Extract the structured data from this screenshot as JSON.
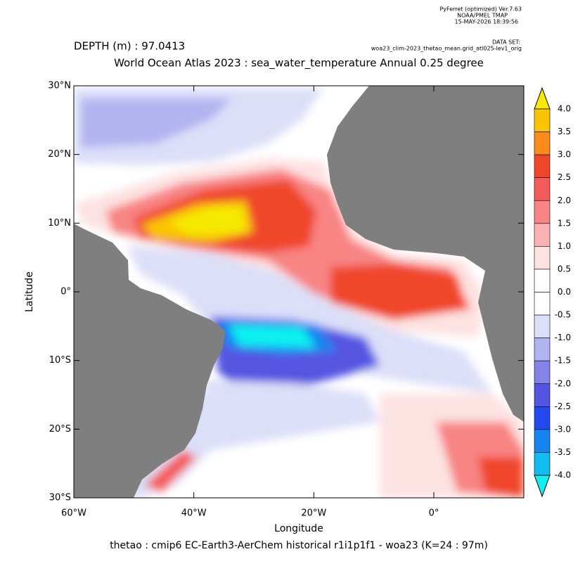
{
  "header": {
    "software": "PyFerret (optimized) Ver.7.63",
    "org": "NOAA/PMEL TMAP",
    "date": "15-MAY-2026 18:39:56",
    "dataset_label": "DATA SET:",
    "dataset": "woa23_clim-2023_thetao_mean.grid_atl025-lev1_orig"
  },
  "chart_data": {
    "type": "map",
    "subtitle": "DEPTH (m) : 97.0413",
    "title": "World Ocean Atlas 2023 : sea_water_temperature Annual  0.25 degree",
    "xlabel": "Longitude",
    "ylabel": "Latitude",
    "footer": "thetao : cmip6 EC-Earth3-AerChem historical r1i1p1f1 - woa23  (K=24 : 97m)",
    "xlim": [
      -60,
      15
    ],
    "ylim": [
      -30,
      30
    ],
    "xticks": [
      {
        "value": -60,
        "label": "60°W"
      },
      {
        "value": -40,
        "label": "40°W"
      },
      {
        "value": -20,
        "label": "20°W"
      },
      {
        "value": 0,
        "label": "0°"
      }
    ],
    "yticks": [
      {
        "value": 30,
        "label": "30°N"
      },
      {
        "value": 20,
        "label": "20°N"
      },
      {
        "value": 10,
        "label": "10°N"
      },
      {
        "value": 0,
        "label": "0°"
      },
      {
        "value": -10,
        "label": "10°S"
      },
      {
        "value": -20,
        "label": "20°S"
      },
      {
        "value": -30,
        "label": "30°S"
      }
    ],
    "colorbar": {
      "levels": [
        {
          "value": 4,
          "label": "4.0"
        },
        {
          "value": 3.5,
          "label": "3.5"
        },
        {
          "value": 3,
          "label": "3.0"
        },
        {
          "value": 2.5,
          "label": "2.5"
        },
        {
          "value": 2,
          "label": "2.0"
        },
        {
          "value": 1.5,
          "label": "1.5"
        },
        {
          "value": 1,
          "label": "1.0"
        },
        {
          "value": 0.5,
          "label": "0.5"
        },
        {
          "value": 0,
          "label": "0.0"
        },
        {
          "value": -0.5,
          "label": "-0.5"
        },
        {
          "value": -1,
          "label": "-1.0"
        },
        {
          "value": -1.5,
          "label": "-1.5"
        },
        {
          "value": -2,
          "label": "-2.0"
        },
        {
          "value": -2.5,
          "label": "-2.5"
        },
        {
          "value": -3,
          "label": "-3.0"
        },
        {
          "value": -3.5,
          "label": "-3.5"
        },
        {
          "value": -4,
          "label": "-4.0"
        }
      ],
      "colors": [
        "#f5ea00",
        "#f9c400",
        "#ff8a1c",
        "#f0462a",
        "#f55a5a",
        "#f88484",
        "#fbb2b2",
        "#fde2e2",
        "#ffffff",
        "#ffffff",
        "#dcdff8",
        "#b2b4f0",
        "#8484e8",
        "#5454e2",
        "#2448f0",
        "#1484f0",
        "#10bcf0",
        "#10f0f0"
      ]
    }
  }
}
